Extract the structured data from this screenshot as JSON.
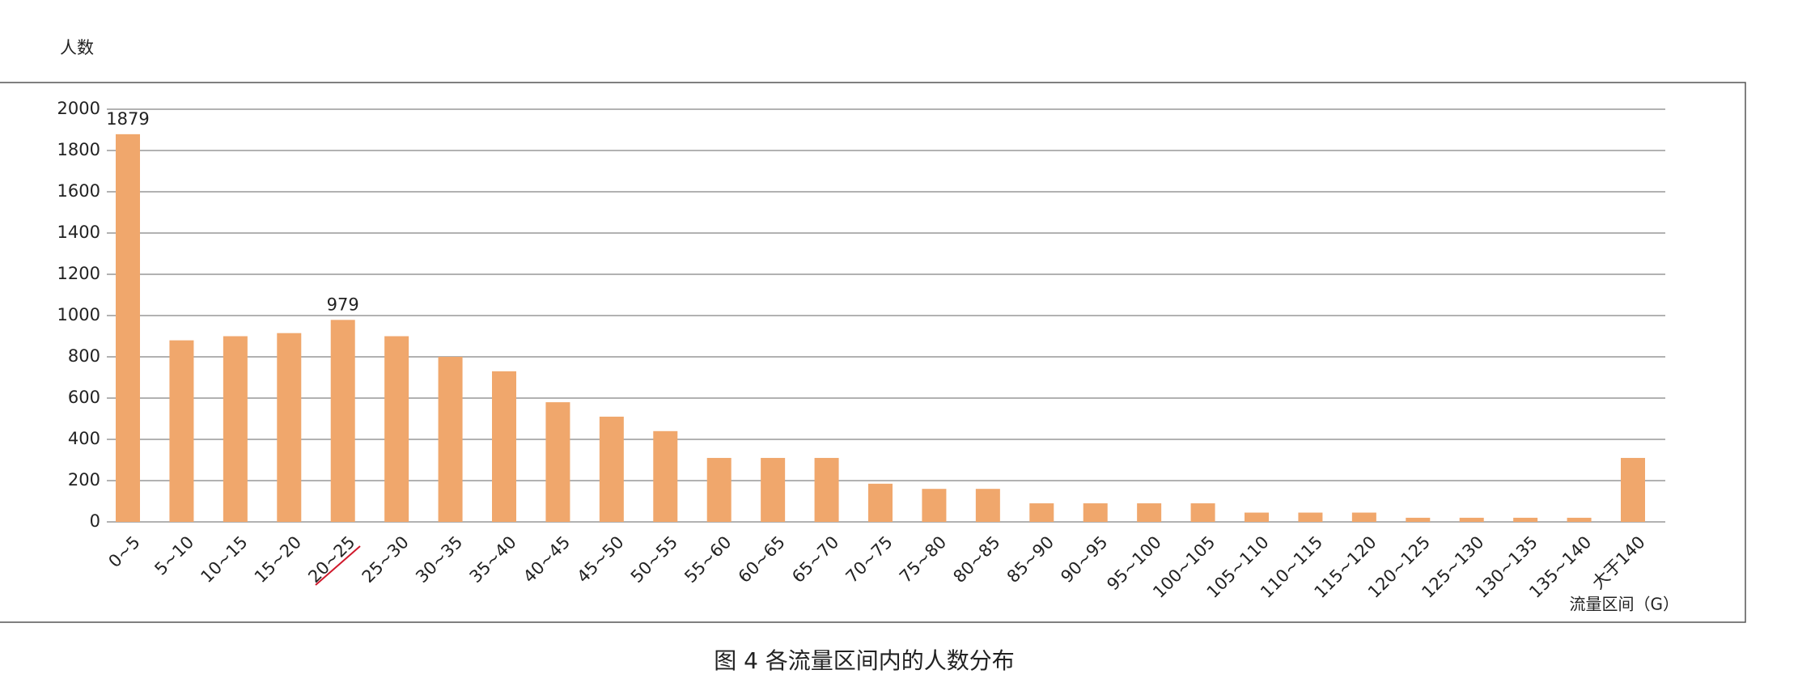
{
  "chart_data": {
    "type": "bar",
    "title": "图 4  各流量区间内的人数分布",
    "y_label": "人数",
    "x_label": "流量区间（G）",
    "categories": [
      "0~5",
      "5~10",
      "10~15",
      "15~20",
      "20~25",
      "25~30",
      "30~35",
      "35~40",
      "40~45",
      "45~50",
      "50~55",
      "55~60",
      "60~65",
      "65~70",
      "70~75",
      "75~80",
      "80~85",
      "85~90",
      "90~95",
      "95~100",
      "100~105",
      "105~110",
      "110~115",
      "115~120",
      "120~125",
      "125~130",
      "130~135",
      "135~140",
      "大于140"
    ],
    "values": [
      1879,
      880,
      900,
      915,
      979,
      900,
      800,
      730,
      580,
      510,
      440,
      310,
      310,
      310,
      185,
      160,
      160,
      90,
      90,
      90,
      90,
      45,
      45,
      45,
      20,
      20,
      20,
      20,
      310
    ],
    "value_labels": [
      "1879",
      null,
      null,
      null,
      "979",
      null,
      null,
      null,
      null,
      null,
      null,
      null,
      null,
      null,
      null,
      null,
      null,
      null,
      null,
      null,
      null,
      null,
      null,
      null,
      null,
      null,
      null,
      null,
      null
    ],
    "color": "#f0a76c",
    "ylim": [
      0,
      2000
    ],
    "yticks": [
      0,
      200,
      400,
      600,
      800,
      1000,
      1200,
      1400,
      1600,
      1800,
      2000
    ],
    "grid": true
  }
}
